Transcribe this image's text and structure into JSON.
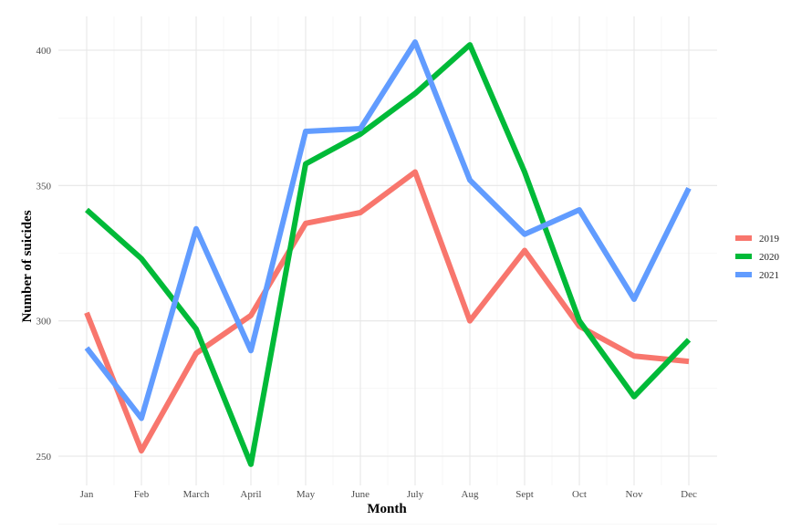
{
  "chart_data": {
    "type": "line",
    "title": "",
    "xlabel": "Month",
    "ylabel": "Number of suicides",
    "categories": [
      "Jan",
      "Feb",
      "March",
      "April",
      "May",
      "June",
      "July",
      "Aug",
      "Sept",
      "Oct",
      "Nov",
      "Dec"
    ],
    "ylim": [
      240,
      410
    ],
    "yticks": [
      250,
      300,
      350,
      400
    ],
    "grid": true,
    "legend_position": "right",
    "series": [
      {
        "name": "2019",
        "color": "#F8766D",
        "values": [
          303,
          252,
          288,
          302,
          336,
          340,
          355,
          300,
          326,
          298,
          287,
          285
        ]
      },
      {
        "name": "2020",
        "color": "#00BA38",
        "values": [
          341,
          323,
          297,
          247,
          358,
          369,
          384,
          402,
          355,
          300,
          272,
          293
        ]
      },
      {
        "name": "2021",
        "color": "#619CFF",
        "values": [
          290,
          264,
          334,
          289,
          370,
          371,
          403,
          352,
          332,
          341,
          308,
          349
        ]
      }
    ]
  }
}
